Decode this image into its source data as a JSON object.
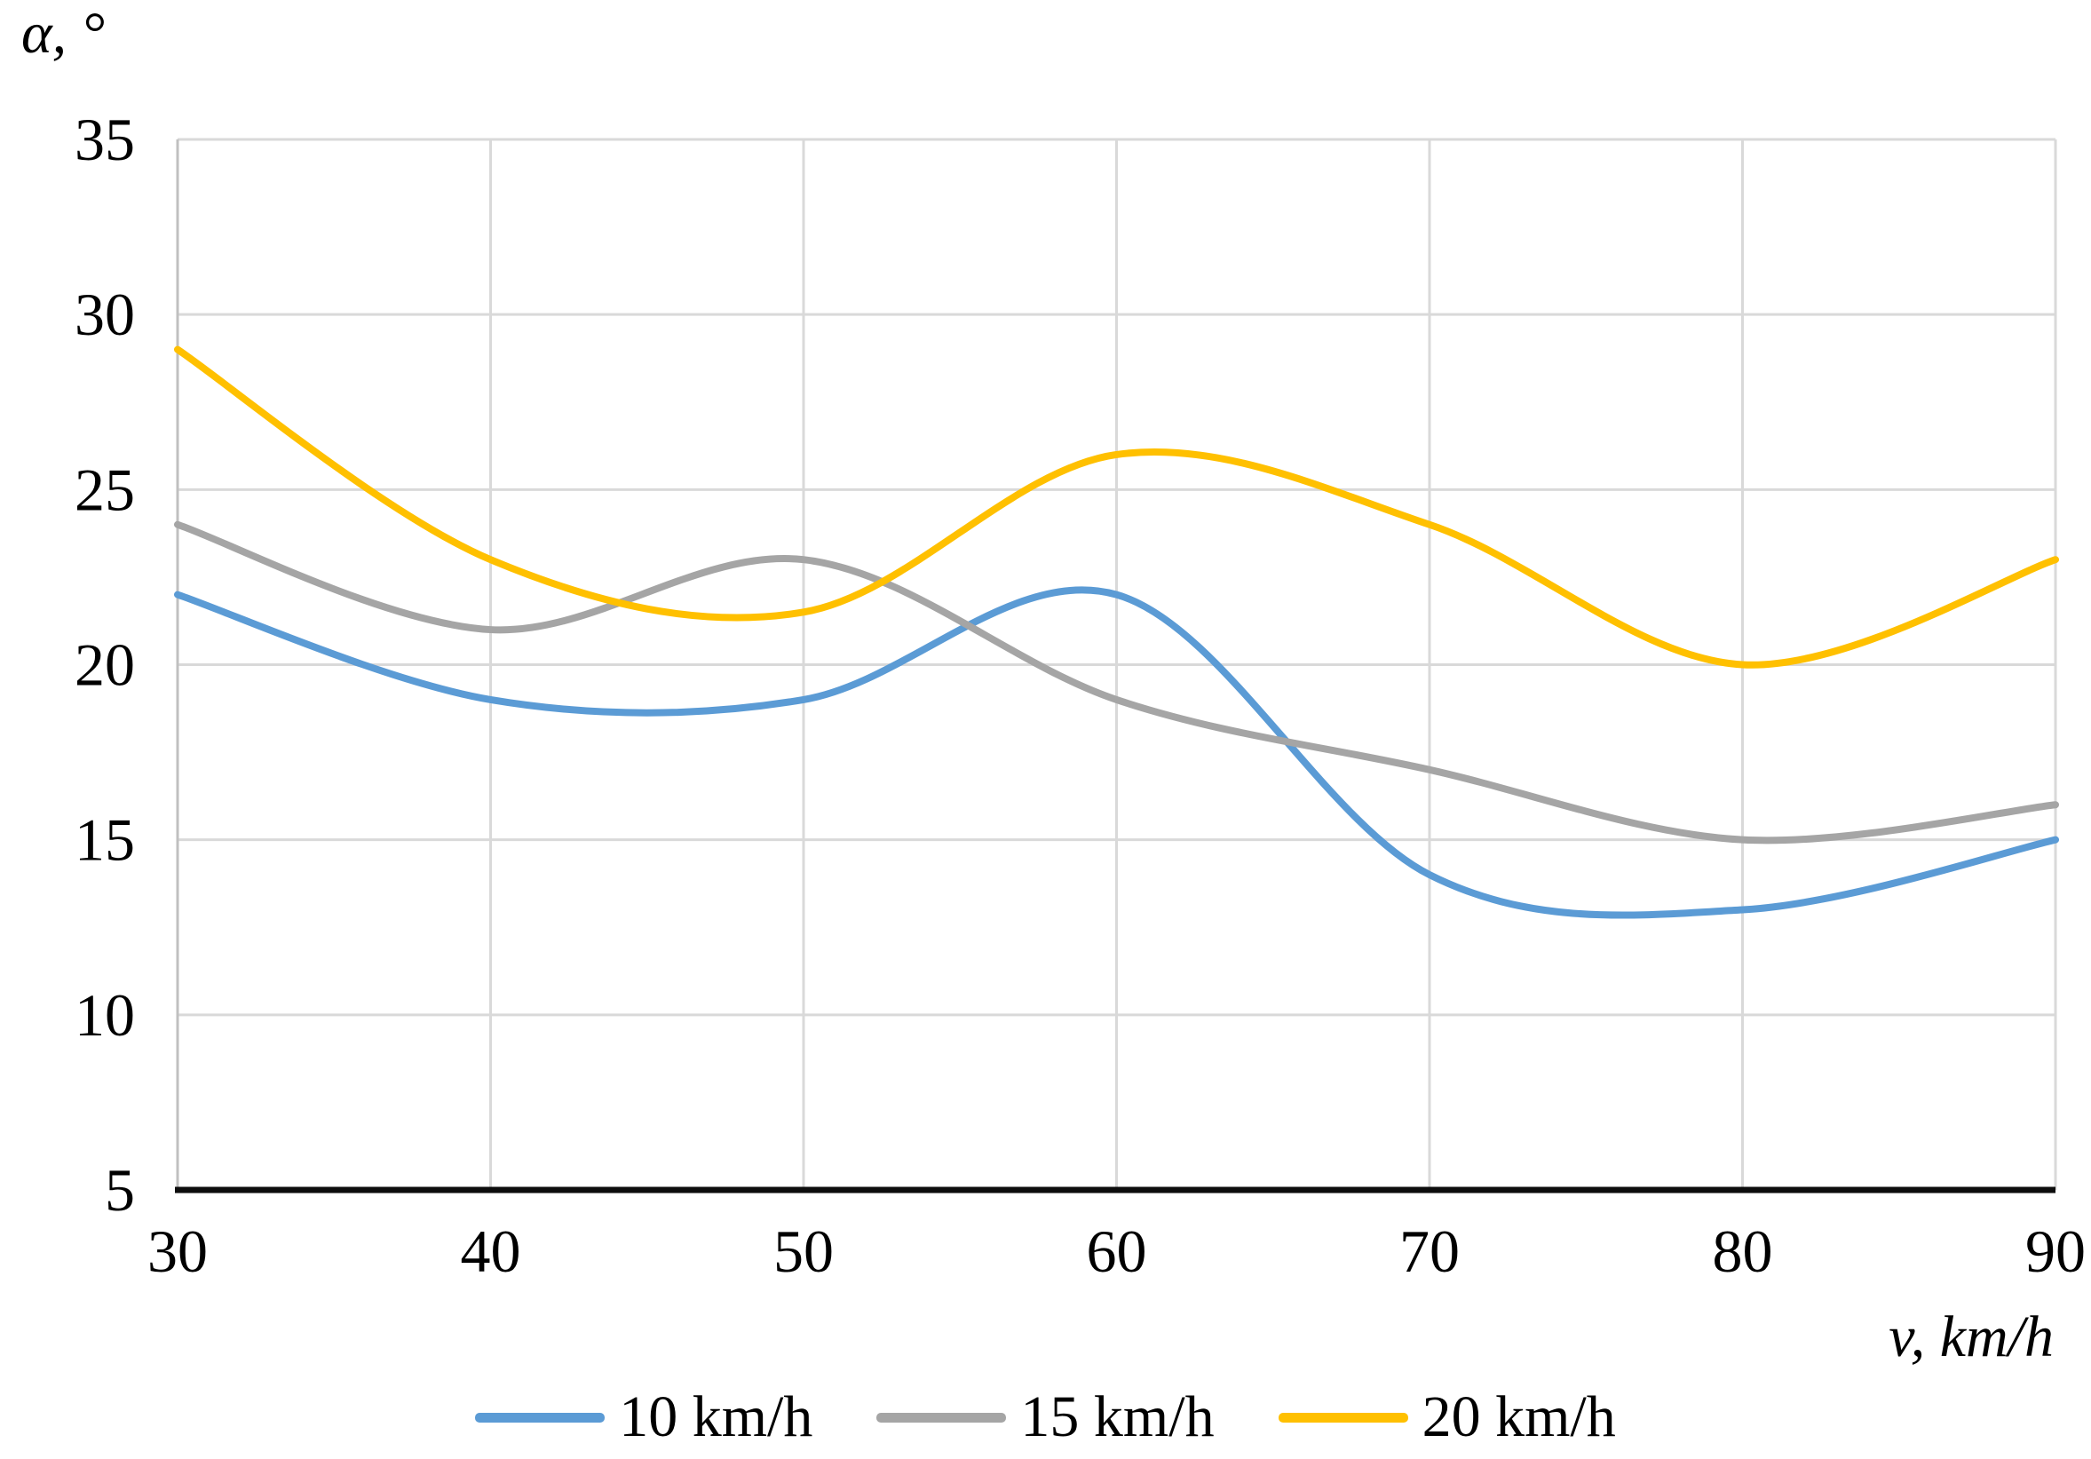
{
  "chart_data": {
    "type": "line",
    "x": [
      30,
      40,
      50,
      60,
      70,
      80,
      90
    ],
    "series": [
      {
        "name": "10 km/h",
        "color": "#5B9BD5",
        "values": [
          22,
          19,
          19,
          22,
          14,
          13,
          15
        ]
      },
      {
        "name": "15 km/h",
        "color": "#A5A5A5",
        "values": [
          24,
          21,
          23,
          19,
          17,
          15,
          16
        ]
      },
      {
        "name": "20 km/h",
        "color": "#FFC000",
        "values": [
          29,
          23,
          21.5,
          26,
          24,
          20,
          23
        ]
      }
    ],
    "xlabel": "v, km/h",
    "ylabel": "α, °",
    "xlim": [
      30,
      90
    ],
    "ylim": [
      5,
      35
    ],
    "xticks": [
      30,
      40,
      50,
      60,
      70,
      80,
      90
    ],
    "yticks": [
      35,
      30,
      25,
      20,
      15,
      10,
      5
    ],
    "grid": true,
    "line_style": "smooth",
    "legend_position": "bottom"
  },
  "colors": {
    "background": "#FFFFFF",
    "gridline": "#D9D9D9",
    "y_axis_line": "#C0C0C0",
    "baseline": "#0D0D0D",
    "text": "#000000"
  }
}
